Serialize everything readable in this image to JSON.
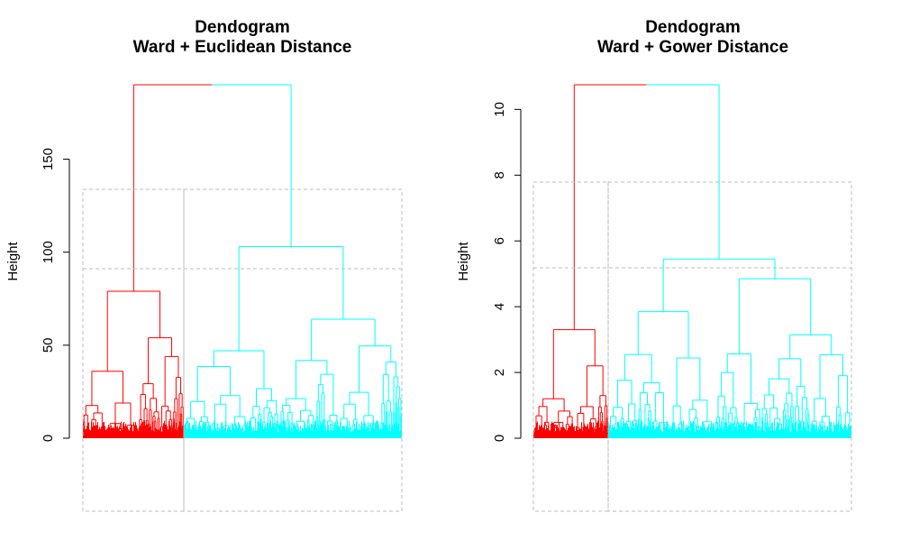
{
  "chart_data": [
    {
      "type": "dendrogram",
      "title_line1": "Dendogram",
      "title_line2": "Ward + Euclidean Distance",
      "ylabel": "Height",
      "xlabel": "",
      "ylim": [
        0,
        190
      ],
      "yticks": [
        0,
        50,
        100,
        150
      ],
      "cut_heights": [
        91,
        135
      ],
      "clusters_at_cut_91": 3,
      "clusters_at_cut_135": 2,
      "root_height": 190,
      "colors": {
        "cluster_1": "#ff0000",
        "cluster_2": "#00ffff",
        "box_line": "#bebebe"
      },
      "left_branch": {
        "color": "red",
        "height": 79,
        "children_heights": [
          54,
          36
        ]
      },
      "right_branch": {
        "color": "cyan",
        "height": 103,
        "children_heights": [
          64,
          47
        ]
      },
      "leaf_share": [
        0.32,
        0.68
      ]
    },
    {
      "type": "dendrogram",
      "title_line1": "Dendogram",
      "title_line2": "Ward + Gower Distance",
      "ylabel": "Height",
      "xlabel": "",
      "ylim": [
        0,
        10.7
      ],
      "yticks": [
        0,
        2,
        4,
        6,
        8,
        10
      ],
      "cut_heights": [
        5.2,
        7.8
      ],
      "clusters_at_cut_5_2": 3,
      "clusters_at_cut_7_8": 2,
      "root_height": 10.75,
      "colors": {
        "cluster_1": "#ff0000",
        "cluster_2": "#00ffff",
        "box_line": "#bebebe"
      },
      "left_branch": {
        "color": "red",
        "height": 3.3,
        "children_heights": [
          2.2,
          1.2
        ]
      },
      "right_branch": {
        "color": "cyan",
        "height": 5.45,
        "children_heights": [
          4.85,
          3.85
        ]
      },
      "leaf_share": [
        0.23,
        0.77
      ]
    }
  ]
}
